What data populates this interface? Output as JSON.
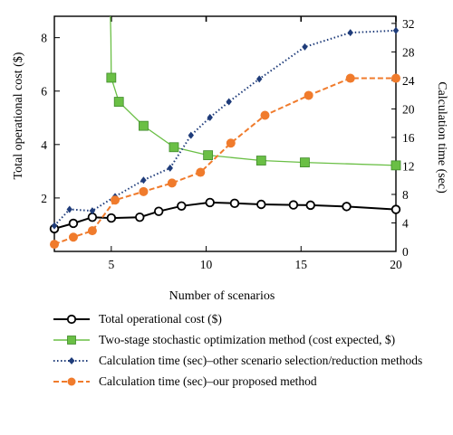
{
  "chart_data": {
    "type": "line",
    "xlabel": "Number of scenarios",
    "ylabel_left": "Total operational cost ($)",
    "ylabel_right": "Calculation time (sec)",
    "xlim": [
      2,
      20
    ],
    "ylim_left": [
      0,
      8.8
    ],
    "ylim_right": [
      0,
      33
    ],
    "x_ticks": [
      5,
      10,
      15,
      20
    ],
    "y_ticks_left": [
      2,
      4,
      6,
      8
    ],
    "y_ticks_right": [
      0,
      4,
      8,
      12,
      16,
      20,
      24,
      28,
      32
    ],
    "grid": false,
    "series": [
      {
        "name": "Total operational cost ($)",
        "axis": "left",
        "color": "#000000",
        "marker": "open-circle",
        "line": "solid",
        "x": [
          2,
          3,
          4,
          5,
          6.5,
          7.5,
          8.7,
          10.2,
          11.5,
          12.9,
          14.6,
          15.5,
          17.4,
          20
        ],
        "y": [
          0.85,
          1.05,
          1.28,
          1.25,
          1.28,
          1.5,
          1.7,
          1.83,
          1.8,
          1.76,
          1.74,
          1.73,
          1.68,
          1.57
        ]
      },
      {
        "name": "Two-stage stochastic optimization method (cost expected, $)",
        "axis": "left",
        "color": "#6abf45",
        "marker": "square",
        "line": "solid",
        "x": [
          5,
          5.4,
          6.7,
          8.3,
          10.1,
          12.9,
          15.2,
          20
        ],
        "y": [
          6.5,
          5.6,
          4.7,
          3.9,
          3.6,
          3.4,
          3.33,
          3.22
        ]
      },
      {
        "name": "Calculation time (sec)–other scenario selection/reduction methods",
        "axis": "right",
        "color": "#1f3c7a",
        "marker": "diamond",
        "line": "dotted",
        "x": [
          2,
          2.8,
          4,
          5.2,
          6.7,
          8.1,
          9.2,
          10.2,
          11.2,
          12.8,
          15.2,
          17.6,
          20
        ],
        "y": [
          3.6,
          5.9,
          5.7,
          7.7,
          10.0,
          11.7,
          16.3,
          18.8,
          21.0,
          24.2,
          28.7,
          30.7,
          31.0
        ]
      },
      {
        "name": "Calculation time (sec)–our proposed method",
        "axis": "right",
        "color": "#f07b2c",
        "marker": "filled-circle",
        "line": "dashed",
        "x": [
          2,
          3,
          4,
          5.2,
          6.7,
          8.2,
          9.7,
          11.3,
          13.1,
          15.4,
          17.6,
          20
        ],
        "y": [
          1.0,
          2.0,
          2.9,
          7.2,
          8.4,
          9.6,
          11.1,
          15.2,
          19.1,
          21.9,
          24.3,
          24.3
        ]
      }
    ]
  }
}
